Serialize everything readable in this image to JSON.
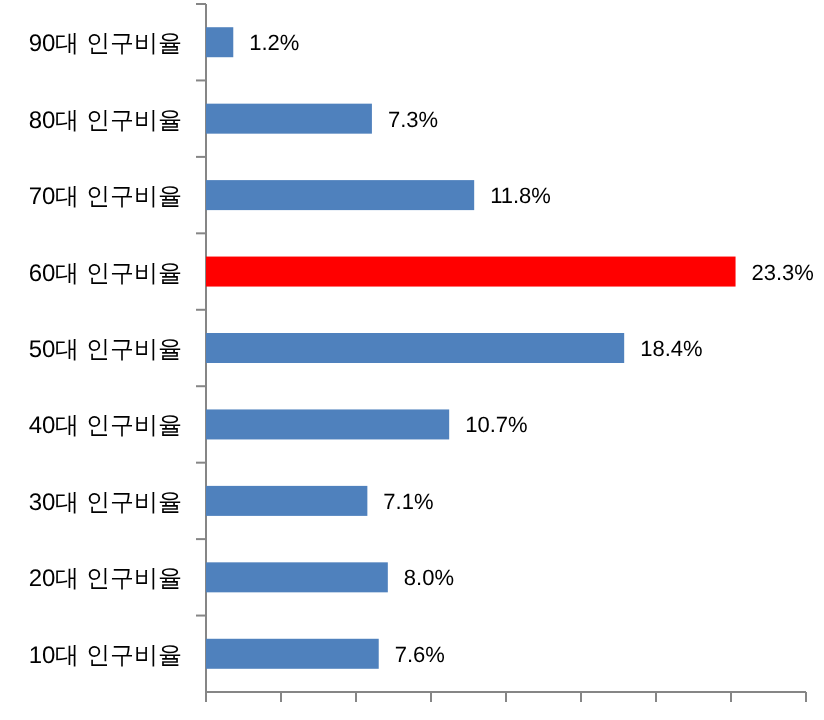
{
  "chart_data": {
    "type": "bar",
    "orientation": "horizontal",
    "categories": [
      "90대 인구비율",
      "80대 인구비율",
      "70대 인구비율",
      "60대 인구비율",
      "50대 인구비율",
      "40대 인구비율",
      "30대 인구비율",
      "20대 인구비율",
      "10대 인구비율"
    ],
    "values": [
      1.2,
      7.3,
      11.8,
      23.3,
      18.4,
      10.7,
      7.1,
      8.0,
      7.6
    ],
    "colors": [
      "#4f81bd",
      "#4f81bd",
      "#4f81bd",
      "#ff0000",
      "#4f81bd",
      "#4f81bd",
      "#4f81bd",
      "#4f81bd",
      "#4f81bd"
    ],
    "value_labels": [
      "1.2%",
      "7.3%",
      "11.8%",
      "23.3%",
      "18.4%",
      "10.7%",
      "7.1%",
      "8.0%",
      "7.6%"
    ],
    "xlim": [
      0,
      26.4
    ],
    "xticks": [
      {
        "value": 0,
        "label": null
      },
      {
        "value": 3.3,
        "label": null
      },
      {
        "value": 6.6,
        "label": null
      },
      {
        "value": 9.9,
        "label": null
      },
      {
        "value": 13.2,
        "label": null
      },
      {
        "value": 16.5,
        "label": null
      },
      {
        "value": 19.8,
        "label": null
      },
      {
        "value": 23.1,
        "label": null
      },
      {
        "value": 26.4,
        "label": null
      }
    ],
    "tick_labels": "y"
  }
}
